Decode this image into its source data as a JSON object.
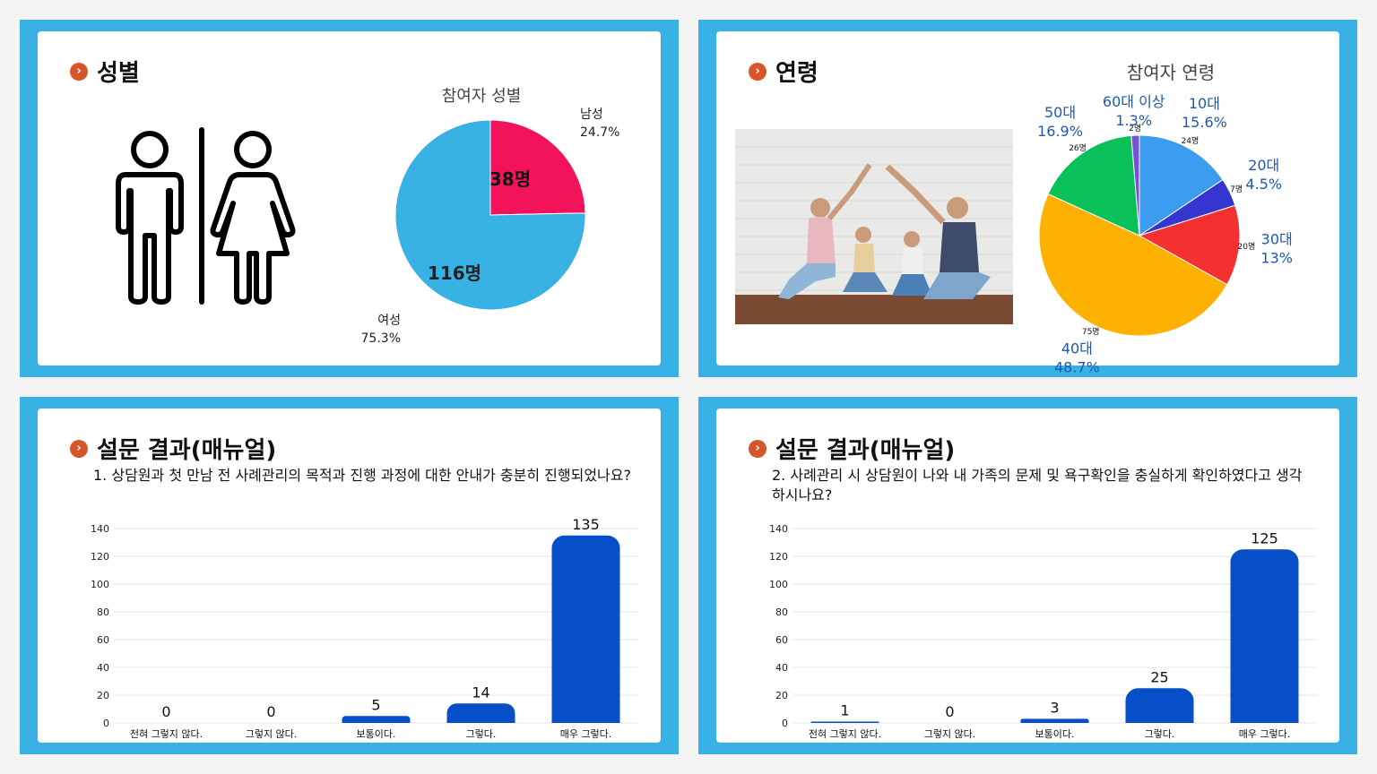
{
  "slides": {
    "gender": {
      "heading": "성별"
    },
    "age": {
      "heading": "연령"
    },
    "q1": {
      "heading": "설문 결과(매뉴얼)",
      "question": "1. 상담원과 첫 만남 전 사례관리의 목적과 진행 과정에 대한 안내가 충분히 진행되었나요?"
    },
    "q2": {
      "heading": "설문 결과(매뉴얼)",
      "question": "2. 사례관리 시 상담원이 나와 내 가족의 문제 및 욕구확인을 충실하게 확인하였다고 생각하시나요?"
    }
  },
  "icons": {
    "bullet": "chevron-right-icon",
    "gender": "restroom-icon",
    "photo": "family-photo"
  },
  "colors": {
    "frame": "#38b1e4",
    "bullet": "#d7552a",
    "bar": "#074fc8",
    "label_blue": "#1f5aa8"
  },
  "chart_data": [
    {
      "type": "pie",
      "title": "참여자 성별",
      "slices": [
        {
          "label": "남성",
          "value": 38,
          "count_label": "38명",
          "percent": "24.7%",
          "color": "#f2135b"
        },
        {
          "label": "여성",
          "value": 116,
          "count_label": "116명",
          "percent": "75.3%",
          "color": "#38b1e4"
        }
      ]
    },
    {
      "type": "pie",
      "title": "참여자 연령",
      "slices": [
        {
          "label": "10대",
          "value": 24,
          "count_label": "24명",
          "percent": "15.6%",
          "color": "#3b9cf0"
        },
        {
          "label": "20대",
          "value": 7,
          "count_label": "7명",
          "percent": "4.5%",
          "color": "#3535d0"
        },
        {
          "label": "30대",
          "value": 20,
          "count_label": "20명",
          "percent": "13%",
          "color": "#f33131"
        },
        {
          "label": "40대",
          "value": 75,
          "count_label": "75명",
          "percent": "48.7%",
          "color": "#fdb100"
        },
        {
          "label": "50대",
          "value": 26,
          "count_label": "26명",
          "percent": "16.9%",
          "color": "#09c158"
        },
        {
          "label": "60대 이상",
          "value": 2,
          "count_label": "2명",
          "percent": "1.3%",
          "color": "#7a4fd8"
        }
      ]
    },
    {
      "type": "bar",
      "categories": [
        "전혀 그렇지 않다.",
        "그렇지 않다.",
        "보통이다.",
        "그렇다.",
        "매우 그렇다."
      ],
      "values": [
        0,
        0,
        5,
        14,
        135
      ],
      "yticks": [
        0,
        20,
        40,
        60,
        80,
        100,
        120,
        140
      ],
      "ylim": [
        0,
        140
      ],
      "grid": true
    },
    {
      "type": "bar",
      "categories": [
        "전혀 그렇지 않다.",
        "그렇지 않다.",
        "보통이다.",
        "그렇다.",
        "매우 그렇다."
      ],
      "values": [
        1,
        0,
        3,
        25,
        125
      ],
      "yticks": [
        0,
        20,
        40,
        60,
        80,
        100,
        120,
        140
      ],
      "ylim": [
        0,
        140
      ],
      "grid": true
    }
  ]
}
